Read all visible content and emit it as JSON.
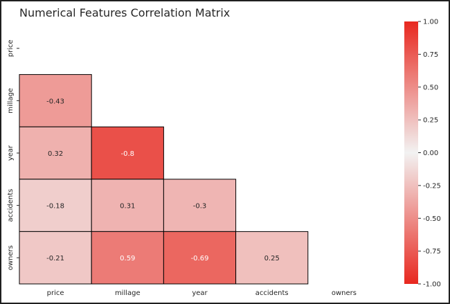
{
  "chart_data": {
    "type": "heatmap",
    "title": "Numerical Features Correlation Matrix",
    "variables": [
      "price",
      "millage",
      "year",
      "accidents",
      "owners"
    ],
    "mask": "upper-triangle-and-diagonal",
    "cells": [
      {
        "row": "millage",
        "col": "price",
        "value": -0.43,
        "label": "-0.43"
      },
      {
        "row": "year",
        "col": "price",
        "value": 0.32,
        "label": "0.32"
      },
      {
        "row": "year",
        "col": "millage",
        "value": -0.8,
        "label": "-0.8"
      },
      {
        "row": "accidents",
        "col": "price",
        "value": -0.18,
        "label": "-0.18"
      },
      {
        "row": "accidents",
        "col": "millage",
        "value": 0.31,
        "label": "0.31"
      },
      {
        "row": "accidents",
        "col": "year",
        "value": -0.3,
        "label": "-0.3"
      },
      {
        "row": "owners",
        "col": "price",
        "value": -0.21,
        "label": "-0.21"
      },
      {
        "row": "owners",
        "col": "millage",
        "value": 0.59,
        "label": "0.59"
      },
      {
        "row": "owners",
        "col": "year",
        "value": -0.69,
        "label": "-0.69"
      },
      {
        "row": "owners",
        "col": "accidents",
        "value": 0.25,
        "label": "0.25"
      }
    ],
    "colorbar": {
      "range": [
        -1.0,
        1.0
      ],
      "ticks": [
        "1.00",
        "0.75",
        "0.50",
        "0.25",
        "0.00",
        "-0.25",
        "-0.50",
        "-0.75",
        "-1.00"
      ],
      "tick_values": [
        1.0,
        0.75,
        0.5,
        0.25,
        0.0,
        -0.25,
        -0.5,
        -0.75,
        -1.0
      ],
      "colormap": "diverging red-white-red (white at 0)",
      "end_color": "#e8281f",
      "mid_color": "#f2f2f2"
    },
    "grid": false
  }
}
